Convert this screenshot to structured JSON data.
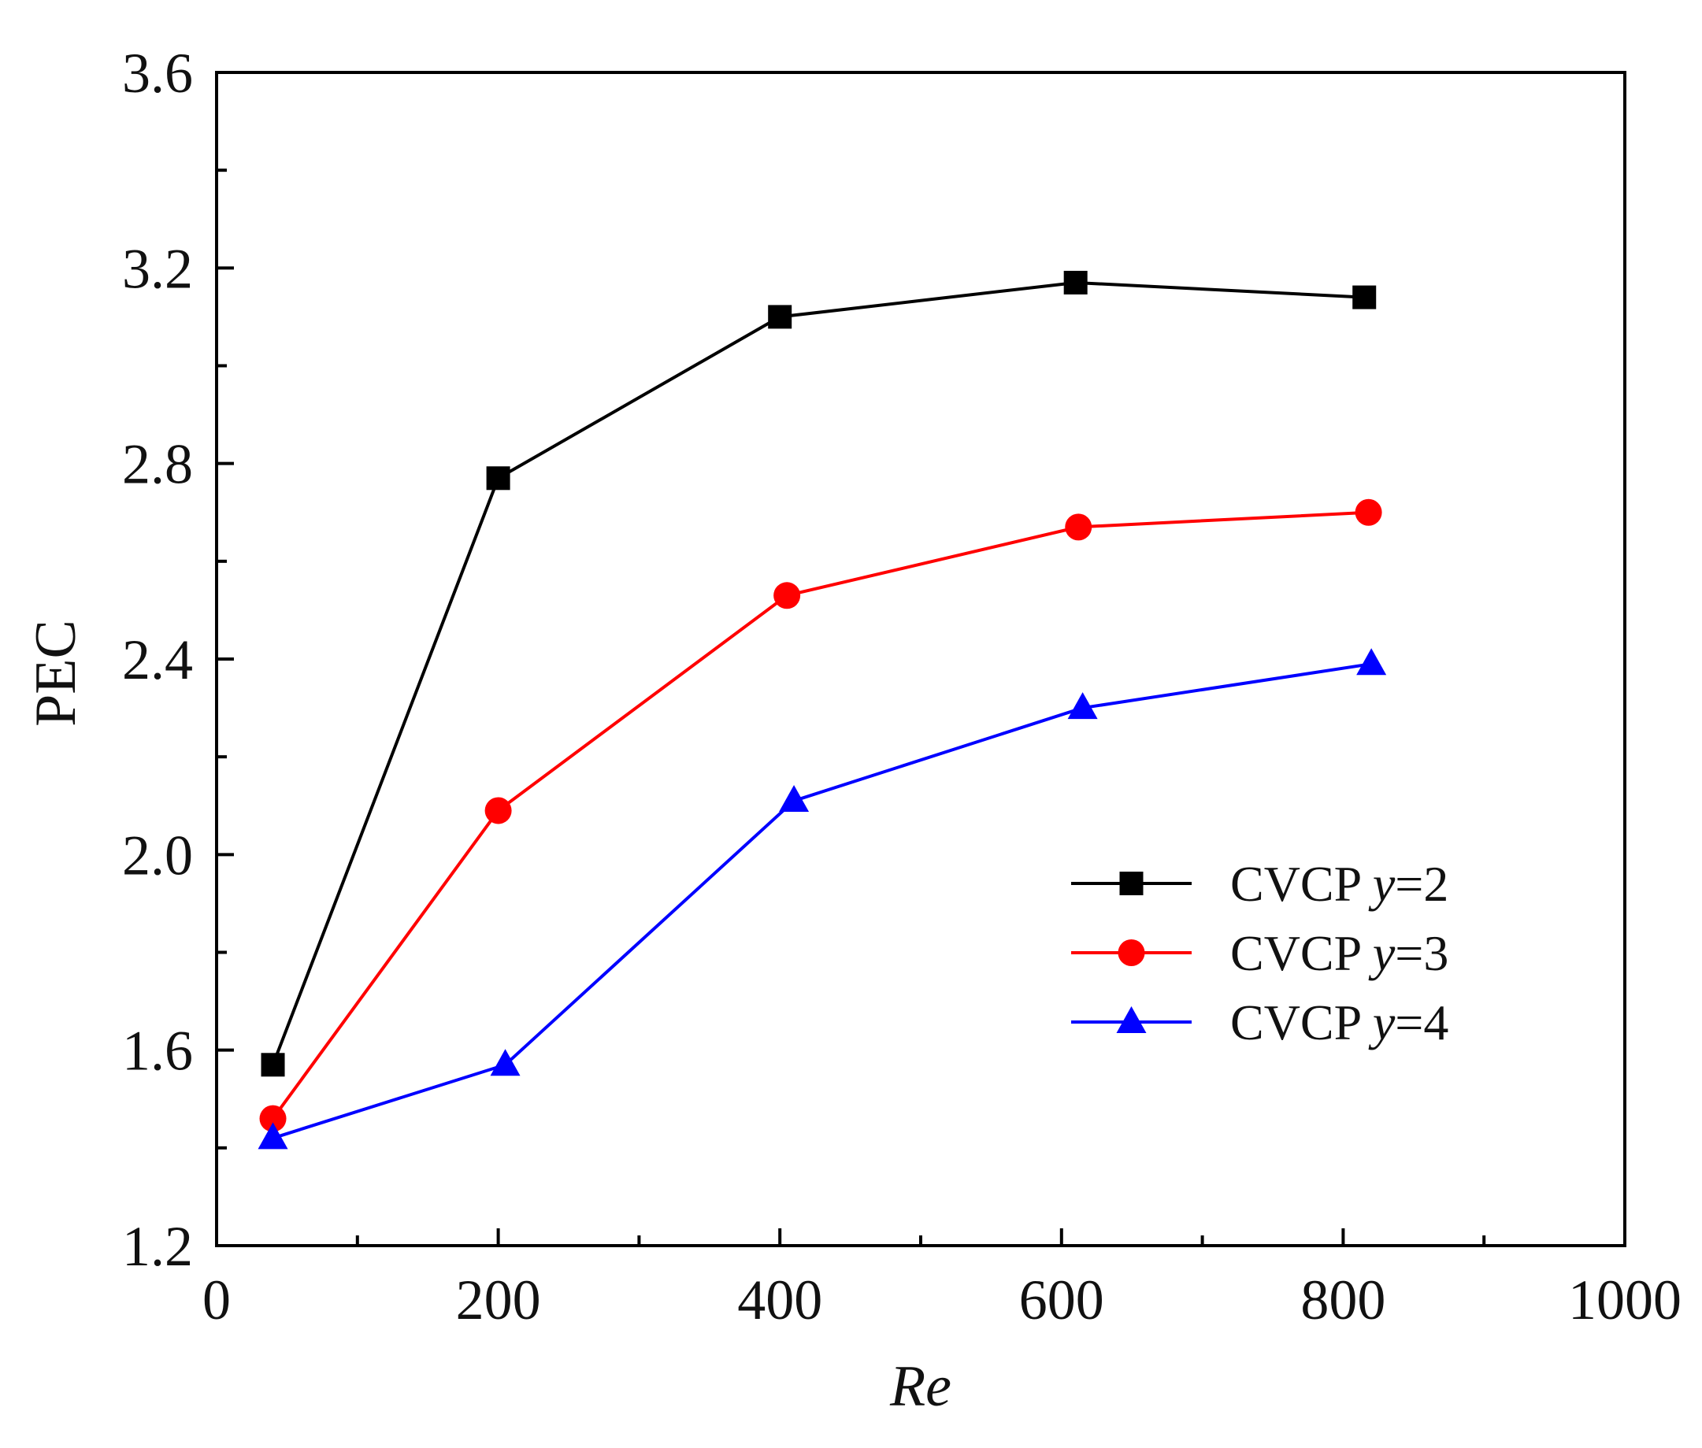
{
  "chart_data": {
    "type": "line",
    "title": "",
    "xlabel": "Re",
    "ylabel": "PEC",
    "xlim": [
      0,
      1000
    ],
    "ylim": [
      1.2,
      3.6
    ],
    "xticks": [
      0,
      200,
      400,
      600,
      800,
      1000
    ],
    "yticks": [
      1.2,
      1.6,
      2.0,
      2.4,
      2.8,
      3.2,
      3.6
    ],
    "xtick_labels": [
      "0",
      "200",
      "400",
      "600",
      "800",
      "1000"
    ],
    "ytick_labels": [
      "1.2",
      "1.6",
      "2.0",
      "2.4",
      "2.8",
      "3.2",
      "3.6"
    ],
    "x_minor_step": 100,
    "y_minor_step": 0.2,
    "grid": false,
    "legend_position": "center-right",
    "series": [
      {
        "name": "CVCP y=2",
        "prefix": "CVCP ",
        "var": "y",
        "suffix": "=2",
        "color": "#000000",
        "marker": "square",
        "x": [
          40,
          200,
          400,
          610,
          815
        ],
        "values": [
          1.57,
          2.77,
          3.1,
          3.17,
          3.14
        ]
      },
      {
        "name": "CVCP y=3",
        "prefix": "CVCP ",
        "var": "y",
        "suffix": "=3",
        "color": "#ff0000",
        "marker": "circle",
        "x": [
          40,
          200,
          405,
          612,
          818
        ],
        "values": [
          1.46,
          2.09,
          2.53,
          2.67,
          2.7
        ]
      },
      {
        "name": "CVCP y=4",
        "prefix": "CVCP ",
        "var": "y",
        "suffix": "=4",
        "color": "#0000ff",
        "marker": "triangle",
        "x": [
          40,
          205,
          410,
          615,
          820
        ],
        "values": [
          1.42,
          1.57,
          2.11,
          2.3,
          2.39
        ]
      }
    ]
  }
}
